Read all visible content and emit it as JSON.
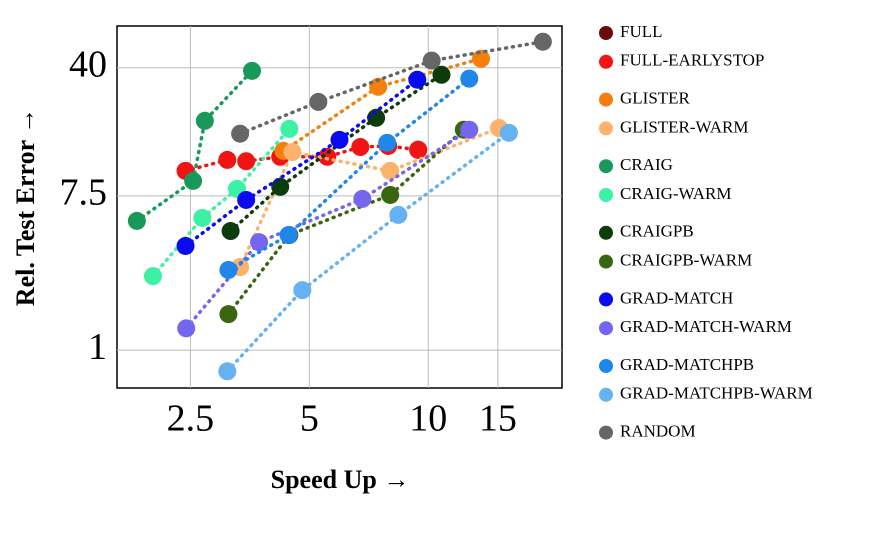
{
  "chart_data": {
    "type": "scatter",
    "xlabel": "Speed Up →",
    "ylabel": "Rel. Test Error →",
    "xlog": true,
    "ylog": true,
    "grid": true,
    "xlim": [
      1.63,
      21.8
    ],
    "ylim": [
      0.61,
      69
    ],
    "xticks": [
      2.5,
      5,
      10,
      15
    ],
    "yticks": [
      1,
      7.5,
      40
    ],
    "series": [
      {
        "name": "FULL",
        "color": "#6b0a0a",
        "x": [
          9.43
        ],
        "values": [
          13.7
        ]
      },
      {
        "name": "FULL-EARLYSTOP",
        "color": "#f01414",
        "x": [
          2.43,
          3.1,
          3.46,
          4.22,
          5.55,
          6.73,
          7.92,
          9.43
        ],
        "values": [
          10.4,
          12.0,
          11.8,
          12.5,
          12.5,
          14.2,
          14.4,
          13.7
        ]
      },
      {
        "name": "GLISTER",
        "color": "#f57f0c",
        "x": [
          4.3,
          7.47,
          13.6
        ],
        "values": [
          13.5,
          31.2,
          45.0
        ]
      },
      {
        "name": "GLISTER-WARM",
        "color": "#fcb26a",
        "x": [
          3.34,
          4.53,
          8.01,
          15.1
        ],
        "values": [
          2.96,
          13.3,
          10.4,
          18.2
        ]
      },
      {
        "name": "CRAIG",
        "color": "#18995a",
        "x": [
          1.83,
          2.54,
          2.72,
          3.58
        ],
        "values": [
          5.41,
          9.12,
          20.0,
          38.4
        ]
      },
      {
        "name": "CRAIG-WARM",
        "color": "#3cf0a4",
        "x": [
          2.01,
          2.68,
          3.28,
          4.45
        ],
        "values": [
          2.63,
          5.62,
          8.22,
          18.0
        ]
      },
      {
        "name": "CRAIGPB",
        "color": "#0c3b0c",
        "x": [
          3.16,
          4.22,
          7.38,
          10.8
        ],
        "values": [
          4.74,
          8.44,
          20.8,
          36.5
        ]
      },
      {
        "name": "CRAIGPB-WARM",
        "color": "#3a6610",
        "x": [
          3.12,
          4.45,
          8.01,
          12.3
        ],
        "values": [
          1.6,
          4.5,
          7.59,
          17.8
        ]
      },
      {
        "name": "GRAD-MATCH",
        "color": "#0a0aee",
        "x": [
          2.43,
          3.46,
          5.96,
          9.38
        ],
        "values": [
          3.9,
          7.11,
          15.6,
          34.2
        ]
      },
      {
        "name": "GRAD-MATCH-WARM",
        "color": "#7466ee",
        "x": [
          2.44,
          3.73,
          6.81,
          12.7
        ],
        "values": [
          1.33,
          4.1,
          7.21,
          17.8
        ]
      },
      {
        "name": "GRAD-MATCHPB",
        "color": "#1f86ea",
        "x": [
          3.12,
          4.43,
          7.87,
          12.7
        ],
        "values": [
          2.85,
          4.5,
          15.0,
          34.7
        ]
      },
      {
        "name": "GRAD-MATCHPB-WARM",
        "color": "#66b1f2",
        "x": [
          3.1,
          4.8,
          8.4,
          16.0
        ],
        "values": [
          0.759,
          2.19,
          5.85,
          17.1
        ]
      },
      {
        "name": "RANDOM",
        "color": "#666666",
        "x": [
          3.34,
          5.27,
          10.2,
          19.5
        ],
        "values": [
          16.9,
          25.6,
          43.9,
          56.2
        ]
      }
    ]
  }
}
